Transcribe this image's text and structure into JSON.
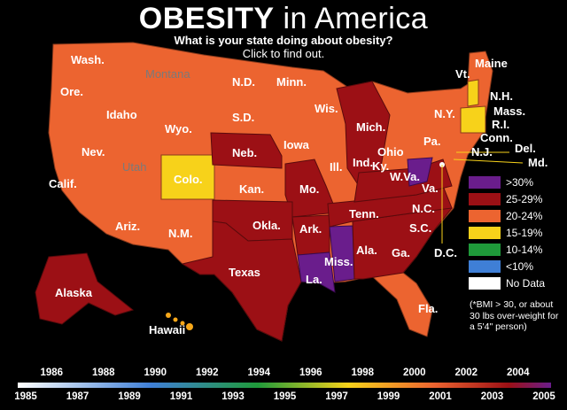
{
  "title": {
    "bold": "OBESITY",
    "light": " in America"
  },
  "subtitle": {
    "line1": "What is your state doing about obesity?",
    "line2": "Click to find out."
  },
  "legend": [
    {
      "label": ">30%",
      "color": "#6a1d8c"
    },
    {
      "label": "25-29%",
      "color": "#9c1015"
    },
    {
      "label": "20-24%",
      "color": "#ec6430"
    },
    {
      "label": "15-19%",
      "color": "#f7d21a"
    },
    {
      "label": "10-14%",
      "color": "#1f9a3a"
    },
    {
      "label": "<10%",
      "color": "#3f7fd6"
    },
    {
      "label": "No Data",
      "color": "#ffffff"
    }
  ],
  "note": "(*BMI > 30, or about 30 lbs over-weight for a 5'4\" person)",
  "states": {
    "wash": "Wash.",
    "ore": "Ore.",
    "calif": "Calif.",
    "nev": "Nev.",
    "idaho": "Idaho",
    "montana": "Montana",
    "wyo": "Wyo.",
    "utah": "Utah",
    "colo": "Colo.",
    "ariz": "Ariz.",
    "nm": "N.M.",
    "nd": "N.D.",
    "sd": "S.D.",
    "neb": "Neb.",
    "kan": "Kan.",
    "okla": "Okla.",
    "texas": "Texas",
    "minn": "Minn.",
    "iowa": "Iowa",
    "mo": "Mo.",
    "ark": "Ark.",
    "la": "La.",
    "wis": "Wis.",
    "ill": "Ill.",
    "mich": "Mich.",
    "ind": "Ind.",
    "ohio": "Ohio",
    "ky": "Ky.",
    "tenn": "Tenn.",
    "miss": "Miss.",
    "ala": "Ala.",
    "ga": "Ga.",
    "fla": "Fla.",
    "sc": "S.C.",
    "nc": "N.C.",
    "va": "Va.",
    "wva": "W.Va.",
    "pa": "Pa.",
    "ny": "N.Y.",
    "vt": "Vt.",
    "nh": "N.H.",
    "maine": "Maine",
    "mass": "Mass.",
    "ri": "R.I.",
    "conn": "Conn.",
    "nj": "N.J.",
    "del": "Del.",
    "md": "Md.",
    "dc": "D.C.",
    "alaska": "Alaska",
    "hawaii": "Hawaii"
  },
  "timeline": {
    "top_years": [
      "1986",
      "1988",
      "1990",
      "1992",
      "1994",
      "1996",
      "1998",
      "2000",
      "2002",
      "2004"
    ],
    "bottom_years": [
      "1985",
      "1987",
      "1989",
      "1991",
      "1993",
      "1995",
      "1997",
      "1999",
      "2001",
      "2003",
      "2005"
    ]
  }
}
